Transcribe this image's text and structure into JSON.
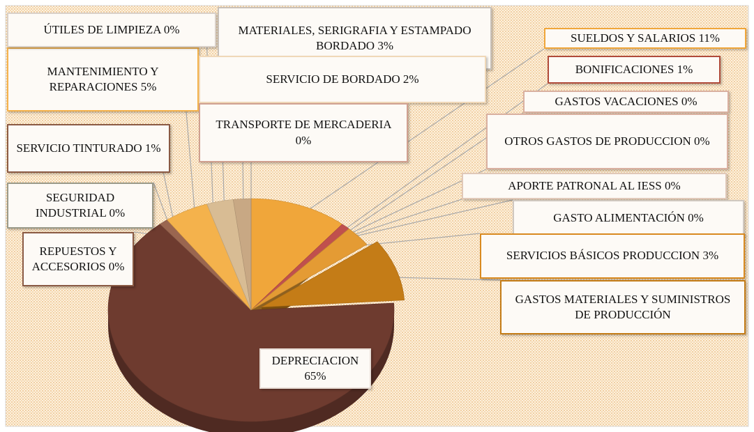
{
  "chart_data": {
    "type": "pie3d",
    "categories": [
      "SUELDOS Y SALARIOS",
      "BONIFICACIONES",
      "GASTOS VACACIONES",
      "OTROS GASTOS DE PRODUCCION",
      "APORTE PATRONAL AL IESS",
      "GASTO ALIMENTACIÓN",
      "SERVICIOS BÁSICOS PRODUCCION",
      "GASTOS MATERIALES Y SUMINISTROS DE PRODUCCIÓN",
      "DEPRECIACION",
      "REPUESTOS Y ACCESORIOS",
      "SEGURIDAD INDUSTRIAL",
      "SERVICIO TINTURADO",
      "MANTENIMIENTO Y REPARACIONES",
      "ÚTILES DE LIMPIEZA",
      "MATERIALES, SERIGRAFIA Y ESTAMPADO BORDADO",
      "SERVICIO DE BORDADO",
      "TRANSPORTE DE MERCADERIA"
    ],
    "values": [
      11,
      1,
      0,
      0,
      0,
      0,
      3,
      9,
      65,
      0,
      0,
      1,
      5,
      0,
      3,
      2,
      0
    ],
    "value_labels": [
      "11%",
      "1%",
      "0%",
      "0%",
      "0%",
      "0%",
      "3%",
      null,
      "65%",
      "0%",
      "0%",
      "1%",
      "5%",
      "0%",
      "3%",
      "2%",
      "0%"
    ],
    "colors": [
      "#f0a63a",
      "#c0504d",
      "#b0704a",
      "#d8a070",
      "#c89a72",
      "#e6b070",
      "#e49b34",
      "#c47c17",
      "#6e3b2f",
      "#8d5c48",
      "#7a4a3a",
      "#9a6650",
      "#f4b24c",
      "#e0c090",
      "#d8bc94",
      "#c8a884",
      "#bfa080"
    ],
    "exploded": [
      7
    ]
  }
}
